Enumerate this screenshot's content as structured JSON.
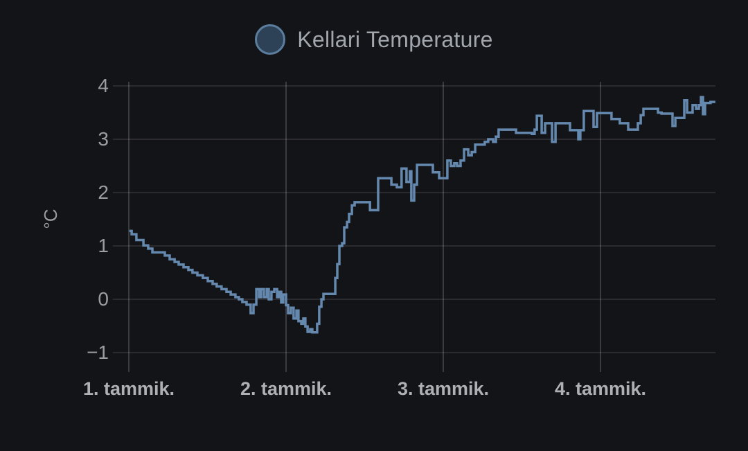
{
  "panel": {
    "title": "Kellari Temperature"
  },
  "colors": {
    "background": "#131418",
    "series_line": "#6589ae",
    "legend_fill": "#2e4257",
    "legend_stroke": "#5c7e9e",
    "grid_horizontal": "rgba(255,255,255,0.10)",
    "grid_vertical": "rgba(255,255,255,0.17)",
    "title_text": "#a2a6ad",
    "ytick_text": "#9b9da1",
    "xtick_text": "#aeb0b4"
  },
  "chart_data": {
    "type": "line",
    "title": "Kellari Temperature",
    "xlabel": "",
    "ylabel": "°C",
    "line_style": "step-after",
    "grid": true,
    "legend_position": "top-center",
    "ylim": [
      -1.35,
      4.15
    ],
    "xlim_days": [
      0.9,
      4.75
    ],
    "y_ticks": [
      {
        "value": 4,
        "label": "4"
      },
      {
        "value": 3,
        "label": "3"
      },
      {
        "value": 2,
        "label": "2"
      },
      {
        "value": 1,
        "label": "1"
      },
      {
        "value": 0,
        "label": "0"
      },
      {
        "value": -1,
        "label": "−1"
      }
    ],
    "x_ticks": [
      {
        "day": 1,
        "label": "1. tammik."
      },
      {
        "day": 2,
        "label": "2. tammik."
      },
      {
        "day": 3,
        "label": "3. tammik."
      },
      {
        "day": 4,
        "label": "4. tammik."
      }
    ],
    "series": [
      {
        "name": "Kellari Temperature",
        "unit": "°C",
        "points": [
          [
            1.004,
            1.28
          ],
          [
            1.018,
            1.22
          ],
          [
            1.048,
            1.11
          ],
          [
            1.093,
            1.01
          ],
          [
            1.123,
            0.95
          ],
          [
            1.15,
            0.88
          ],
          [
            1.229,
            0.82
          ],
          [
            1.26,
            0.75
          ],
          [
            1.291,
            0.7
          ],
          [
            1.317,
            0.65
          ],
          [
            1.348,
            0.6
          ],
          [
            1.379,
            0.55
          ],
          [
            1.405,
            0.5
          ],
          [
            1.436,
            0.45
          ],
          [
            1.471,
            0.4
          ],
          [
            1.502,
            0.34
          ],
          [
            1.533,
            0.29
          ],
          [
            1.559,
            0.24
          ],
          [
            1.59,
            0.19
          ],
          [
            1.621,
            0.14
          ],
          [
            1.648,
            0.09
          ],
          [
            1.678,
            0.04
          ],
          [
            1.7,
            0.0
          ],
          [
            1.722,
            -0.05
          ],
          [
            1.749,
            -0.1
          ],
          [
            1.775,
            -0.26
          ],
          [
            1.793,
            -0.1
          ],
          [
            1.811,
            0.19
          ],
          [
            1.828,
            0.04
          ],
          [
            1.841,
            0.19
          ],
          [
            1.859,
            0.04
          ],
          [
            1.877,
            0.19
          ],
          [
            1.89,
            0.0
          ],
          [
            1.907,
            0.14
          ],
          [
            1.925,
            0.19
          ],
          [
            1.943,
            0.04
          ],
          [
            1.956,
            0.14
          ],
          [
            1.969,
            -0.06
          ],
          [
            1.982,
            0.09
          ],
          [
            2.0,
            -0.11
          ],
          [
            2.013,
            -0.26
          ],
          [
            2.031,
            -0.16
          ],
          [
            2.048,
            -0.36
          ],
          [
            2.066,
            -0.21
          ],
          [
            2.079,
            -0.41
          ],
          [
            2.097,
            -0.46
          ],
          [
            2.11,
            -0.36
          ],
          [
            2.123,
            -0.51
          ],
          [
            2.137,
            -0.61
          ],
          [
            2.154,
            -0.56
          ],
          [
            2.167,
            -0.62
          ],
          [
            2.198,
            -0.46
          ],
          [
            2.211,
            -0.14
          ],
          [
            2.225,
            0.0
          ],
          [
            2.238,
            0.1
          ],
          [
            2.3,
            0.1
          ],
          [
            2.313,
            0.4
          ],
          [
            2.326,
            0.66
          ],
          [
            2.339,
            1.0
          ],
          [
            2.357,
            1.05
          ],
          [
            2.37,
            1.35
          ],
          [
            2.388,
            1.45
          ],
          [
            2.401,
            1.6
          ],
          [
            2.419,
            1.76
          ],
          [
            2.436,
            1.82
          ],
          [
            2.515,
            1.82
          ],
          [
            2.534,
            1.67
          ],
          [
            2.561,
            1.67
          ],
          [
            2.586,
            2.27
          ],
          [
            2.67,
            2.15
          ],
          [
            2.705,
            2.1
          ],
          [
            2.735,
            2.45
          ],
          [
            2.766,
            2.2
          ],
          [
            2.788,
            2.4
          ],
          [
            2.797,
            1.85
          ],
          [
            2.815,
            2.15
          ],
          [
            2.833,
            2.52
          ],
          [
            2.934,
            2.38
          ],
          [
            2.974,
            2.27
          ],
          [
            3.026,
            2.6
          ],
          [
            3.048,
            2.5
          ],
          [
            3.07,
            2.55
          ],
          [
            3.088,
            2.5
          ],
          [
            3.11,
            2.6
          ],
          [
            3.132,
            2.81
          ],
          [
            3.159,
            2.7
          ],
          [
            3.181,
            2.76
          ],
          [
            3.203,
            2.9
          ],
          [
            3.264,
            2.95
          ],
          [
            3.286,
            3.0
          ],
          [
            3.317,
            2.95
          ],
          [
            3.335,
            3.05
          ],
          [
            3.352,
            3.18
          ],
          [
            3.463,
            3.12
          ],
          [
            3.564,
            3.1
          ],
          [
            3.581,
            3.18
          ],
          [
            3.595,
            3.44
          ],
          [
            3.626,
            3.12
          ],
          [
            3.648,
            3.3
          ],
          [
            3.692,
            2.95
          ],
          [
            3.714,
            3.3
          ],
          [
            3.806,
            3.17
          ],
          [
            3.859,
            3.0
          ],
          [
            3.872,
            3.17
          ],
          [
            3.894,
            3.53
          ],
          [
            3.956,
            3.23
          ],
          [
            3.978,
            3.49
          ],
          [
            4.07,
            3.38
          ],
          [
            4.123,
            3.3
          ],
          [
            4.176,
            3.18
          ],
          [
            4.238,
            3.3
          ],
          [
            4.256,
            3.45
          ],
          [
            4.273,
            3.57
          ],
          [
            4.366,
            3.5
          ],
          [
            4.388,
            3.48
          ],
          [
            4.458,
            3.25
          ],
          [
            4.476,
            3.4
          ],
          [
            4.533,
            3.73
          ],
          [
            4.551,
            3.5
          ],
          [
            4.586,
            3.64
          ],
          [
            4.608,
            3.57
          ],
          [
            4.626,
            3.64
          ],
          [
            4.639,
            3.79
          ],
          [
            4.652,
            3.47
          ],
          [
            4.665,
            3.68
          ],
          [
            4.7,
            3.7
          ],
          [
            4.731,
            3.7
          ]
        ]
      }
    ]
  }
}
